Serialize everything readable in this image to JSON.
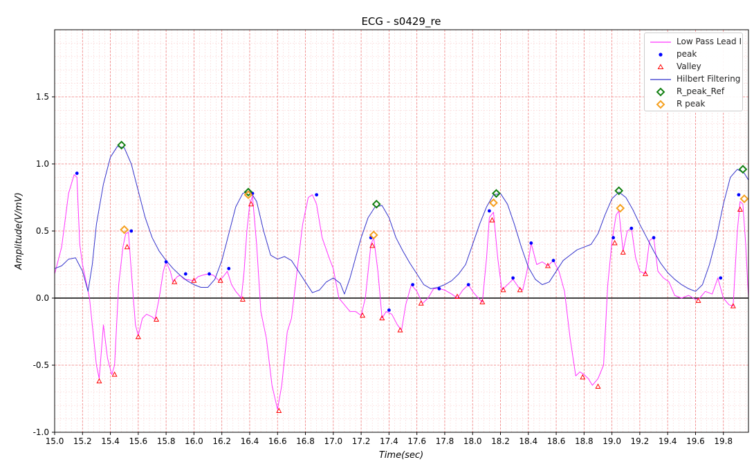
{
  "chart_data": {
    "type": "line",
    "title": "ECG - s0429_re",
    "xlabel": "Time(sec)",
    "ylabel": "Amplitude(V/mV)",
    "xlim": [
      15.0,
      19.98
    ],
    "ylim": [
      -1.0,
      2.0
    ],
    "x_ticks": [
      "15.0",
      "15.2",
      "15.4",
      "15.6",
      "15.8",
      "16.0",
      "16.2",
      "16.4",
      "16.6",
      "16.8",
      "17.0",
      "17.2",
      "17.4",
      "17.6",
      "17.8",
      "18.0",
      "18.2",
      "18.4",
      "18.6",
      "18.8",
      "19.0",
      "19.2",
      "19.4",
      "19.6",
      "19.8"
    ],
    "y_ticks": [
      "-1.0",
      "-0.5",
      "0.0",
      "0.5",
      "1.0",
      "1.5"
    ],
    "grid": true,
    "legend_position": "top-right",
    "colors": {
      "low_pass": "#ff33ff",
      "peak": "#0000ff",
      "valley": "#ff0000",
      "hilbert": "#3333cc",
      "r_peak_ref": "#138013",
      "r_peak": "#f5a01f",
      "major_grid": "#f08080",
      "minor_grid": "#fbd4d4",
      "zero_line": "#000000"
    },
    "series": [
      {
        "name": "Low Pass Lead I",
        "style": "line",
        "x": [
          15.0,
          15.05,
          15.1,
          15.14,
          15.16,
          15.18,
          15.2,
          15.25,
          15.3,
          15.32,
          15.35,
          15.38,
          15.41,
          15.43,
          15.46,
          15.49,
          15.51,
          15.53,
          15.55,
          15.58,
          15.6,
          15.63,
          15.66,
          15.7,
          15.72,
          15.75,
          15.78,
          15.8,
          15.83,
          15.85,
          15.88,
          15.9,
          15.93,
          16.0,
          16.03,
          16.06,
          16.1,
          16.14,
          16.18,
          16.21,
          16.24,
          16.27,
          16.3,
          16.34,
          16.36,
          16.38,
          16.4,
          16.42,
          16.45,
          16.48,
          16.52,
          16.56,
          16.6,
          16.63,
          16.67,
          16.7,
          16.74,
          16.78,
          16.82,
          16.85,
          16.88,
          16.92,
          16.97,
          17.0,
          17.04,
          17.08,
          17.12,
          17.16,
          17.2,
          17.23,
          17.25,
          17.27,
          17.29,
          17.32,
          17.35,
          17.38,
          17.42,
          17.46,
          17.49,
          17.52,
          17.56,
          17.6,
          17.64,
          17.68,
          17.72,
          17.76,
          17.8,
          17.85,
          17.89,
          17.93,
          17.97,
          18.0,
          18.04,
          18.07,
          18.1,
          18.12,
          18.15,
          18.18,
          18.21,
          18.25,
          18.29,
          18.33,
          18.36,
          18.39,
          18.42,
          18.46,
          18.5,
          18.54,
          18.58,
          18.62,
          18.66,
          18.7,
          18.74,
          18.77,
          18.8,
          18.83,
          18.86,
          18.9,
          18.94,
          18.97,
          19.0,
          19.03,
          19.05,
          19.08,
          19.11,
          19.14,
          19.17,
          19.2,
          19.24,
          19.27,
          19.3,
          19.33,
          19.37,
          19.41,
          19.45,
          19.5,
          19.55,
          19.6,
          19.63,
          19.67,
          19.72,
          19.76,
          19.8,
          19.84,
          19.87,
          19.9,
          19.92,
          19.94,
          19.96,
          19.98
        ],
        "y": [
          0.18,
          0.38,
          0.78,
          0.92,
          0.9,
          0.4,
          0.25,
          0.0,
          -0.5,
          -0.6,
          -0.2,
          -0.45,
          -0.57,
          -0.5,
          0.1,
          0.38,
          0.48,
          0.49,
          0.2,
          -0.2,
          -0.28,
          -0.15,
          -0.12,
          -0.14,
          -0.16,
          0.0,
          0.2,
          0.27,
          0.2,
          0.12,
          0.16,
          0.17,
          0.14,
          0.13,
          0.16,
          0.17,
          0.18,
          0.17,
          0.13,
          0.16,
          0.2,
          0.1,
          0.05,
          0.0,
          0.2,
          0.5,
          0.7,
          0.76,
          0.4,
          -0.1,
          -0.3,
          -0.65,
          -0.83,
          -0.65,
          -0.25,
          -0.15,
          0.2,
          0.55,
          0.75,
          0.77,
          0.7,
          0.45,
          0.3,
          0.22,
          0.0,
          -0.05,
          -0.1,
          -0.1,
          -0.13,
          0.0,
          0.2,
          0.4,
          0.45,
          0.2,
          -0.15,
          -0.1,
          -0.12,
          -0.2,
          -0.24,
          -0.05,
          0.1,
          0.05,
          -0.04,
          0.0,
          0.07,
          0.07,
          0.06,
          0.03,
          0.0,
          0.06,
          0.1,
          0.05,
          0.0,
          -0.03,
          0.3,
          0.6,
          0.64,
          0.3,
          0.06,
          0.1,
          0.14,
          0.08,
          0.06,
          0.2,
          0.41,
          0.25,
          0.27,
          0.24,
          0.28,
          0.2,
          0.05,
          -0.3,
          -0.58,
          -0.55,
          -0.57,
          -0.6,
          -0.65,
          -0.6,
          -0.5,
          0.1,
          0.42,
          0.62,
          0.65,
          0.35,
          0.5,
          0.52,
          0.3,
          0.2,
          0.18,
          0.43,
          0.45,
          0.2,
          0.15,
          0.12,
          0.02,
          0.0,
          0.02,
          -0.01,
          0.0,
          0.05,
          0.03,
          0.15,
          0.0,
          -0.05,
          -0.06,
          0.5,
          0.72,
          0.7,
          0.4,
          0.0
        ]
      },
      {
        "name": "peak",
        "style": "dot",
        "x": [
          15.16,
          15.55,
          15.8,
          15.94,
          16.11,
          16.25,
          16.42,
          16.88,
          17.27,
          17.4,
          17.57,
          17.76,
          17.97,
          18.12,
          18.29,
          18.42,
          18.58,
          19.01,
          19.14,
          19.3,
          19.78,
          19.91
        ],
        "y": [
          0.93,
          0.5,
          0.27,
          0.18,
          0.18,
          0.22,
          0.78,
          0.77,
          0.45,
          -0.09,
          0.1,
          0.07,
          0.1,
          0.65,
          0.15,
          0.41,
          0.28,
          0.45,
          0.52,
          0.45,
          0.15,
          0.77
        ]
      },
      {
        "name": "Valley",
        "style": "triangle",
        "x": [
          15.32,
          15.43,
          15.52,
          15.6,
          15.73,
          15.86,
          16.0,
          16.19,
          16.35,
          16.41,
          16.61,
          17.21,
          17.28,
          17.35,
          17.48,
          17.63,
          17.89,
          18.07,
          18.14,
          18.22,
          18.34,
          18.54,
          18.79,
          18.9,
          19.02,
          19.08,
          19.24,
          19.62,
          19.87,
          19.92
        ],
        "y": [
          -0.62,
          -0.57,
          0.38,
          -0.29,
          -0.16,
          0.12,
          0.13,
          0.13,
          -0.01,
          0.7,
          -0.84,
          -0.13,
          0.39,
          -0.15,
          -0.24,
          -0.04,
          0.01,
          -0.03,
          0.58,
          0.06,
          0.06,
          0.24,
          -0.59,
          -0.66,
          0.41,
          0.34,
          0.18,
          -0.02,
          -0.06,
          0.66
        ]
      },
      {
        "name": "Hilbert Filtering",
        "style": "line",
        "x": [
          15.0,
          15.05,
          15.1,
          15.15,
          15.2,
          15.24,
          15.27,
          15.3,
          15.35,
          15.4,
          15.45,
          15.5,
          15.55,
          15.6,
          15.65,
          15.7,
          15.75,
          15.8,
          15.85,
          15.9,
          15.95,
          16.0,
          16.05,
          16.1,
          16.15,
          16.2,
          16.25,
          16.3,
          16.35,
          16.4,
          16.45,
          16.5,
          16.55,
          16.6,
          16.65,
          16.7,
          16.75,
          16.8,
          16.85,
          16.9,
          16.95,
          17.0,
          17.05,
          17.08,
          17.12,
          17.16,
          17.2,
          17.25,
          17.3,
          17.35,
          17.4,
          17.45,
          17.5,
          17.55,
          17.6,
          17.65,
          17.7,
          17.75,
          17.8,
          17.85,
          17.9,
          17.95,
          18.0,
          18.05,
          18.1,
          18.15,
          18.2,
          18.25,
          18.3,
          18.35,
          18.4,
          18.45,
          18.5,
          18.55,
          18.6,
          18.65,
          18.7,
          18.75,
          18.8,
          18.85,
          18.9,
          18.95,
          19.0,
          19.05,
          19.1,
          19.15,
          19.2,
          19.25,
          19.3,
          19.35,
          19.4,
          19.45,
          19.5,
          19.55,
          19.6,
          19.65,
          19.7,
          19.75,
          19.8,
          19.85,
          19.9,
          19.95,
          19.98
        ],
        "y": [
          0.22,
          0.24,
          0.29,
          0.3,
          0.2,
          0.05,
          0.25,
          0.55,
          0.85,
          1.05,
          1.13,
          1.12,
          1.0,
          0.8,
          0.6,
          0.45,
          0.35,
          0.28,
          0.22,
          0.17,
          0.13,
          0.1,
          0.08,
          0.08,
          0.14,
          0.28,
          0.48,
          0.68,
          0.78,
          0.8,
          0.72,
          0.5,
          0.32,
          0.29,
          0.31,
          0.28,
          0.2,
          0.12,
          0.04,
          0.06,
          0.12,
          0.15,
          0.11,
          0.03,
          0.15,
          0.3,
          0.45,
          0.6,
          0.68,
          0.69,
          0.6,
          0.45,
          0.35,
          0.26,
          0.18,
          0.1,
          0.07,
          0.08,
          0.1,
          0.13,
          0.18,
          0.25,
          0.4,
          0.55,
          0.68,
          0.77,
          0.78,
          0.7,
          0.55,
          0.38,
          0.23,
          0.14,
          0.1,
          0.12,
          0.2,
          0.28,
          0.32,
          0.36,
          0.38,
          0.4,
          0.48,
          0.62,
          0.74,
          0.79,
          0.75,
          0.66,
          0.55,
          0.45,
          0.35,
          0.26,
          0.19,
          0.14,
          0.1,
          0.07,
          0.05,
          0.1,
          0.25,
          0.45,
          0.7,
          0.9,
          0.96,
          0.93,
          0.88
        ]
      },
      {
        "name": "R_peak_Ref",
        "style": "diamond",
        "x": [
          15.48,
          16.39,
          17.31,
          18.17,
          19.05,
          19.94
        ],
        "y": [
          1.14,
          0.79,
          0.7,
          0.78,
          0.8,
          0.96
        ]
      },
      {
        "name": "R peak",
        "style": "diamond",
        "x": [
          15.5,
          16.39,
          17.29,
          18.15,
          19.06,
          19.95
        ],
        "y": [
          0.51,
          0.77,
          0.47,
          0.71,
          0.67,
          0.74
        ]
      }
    ]
  }
}
